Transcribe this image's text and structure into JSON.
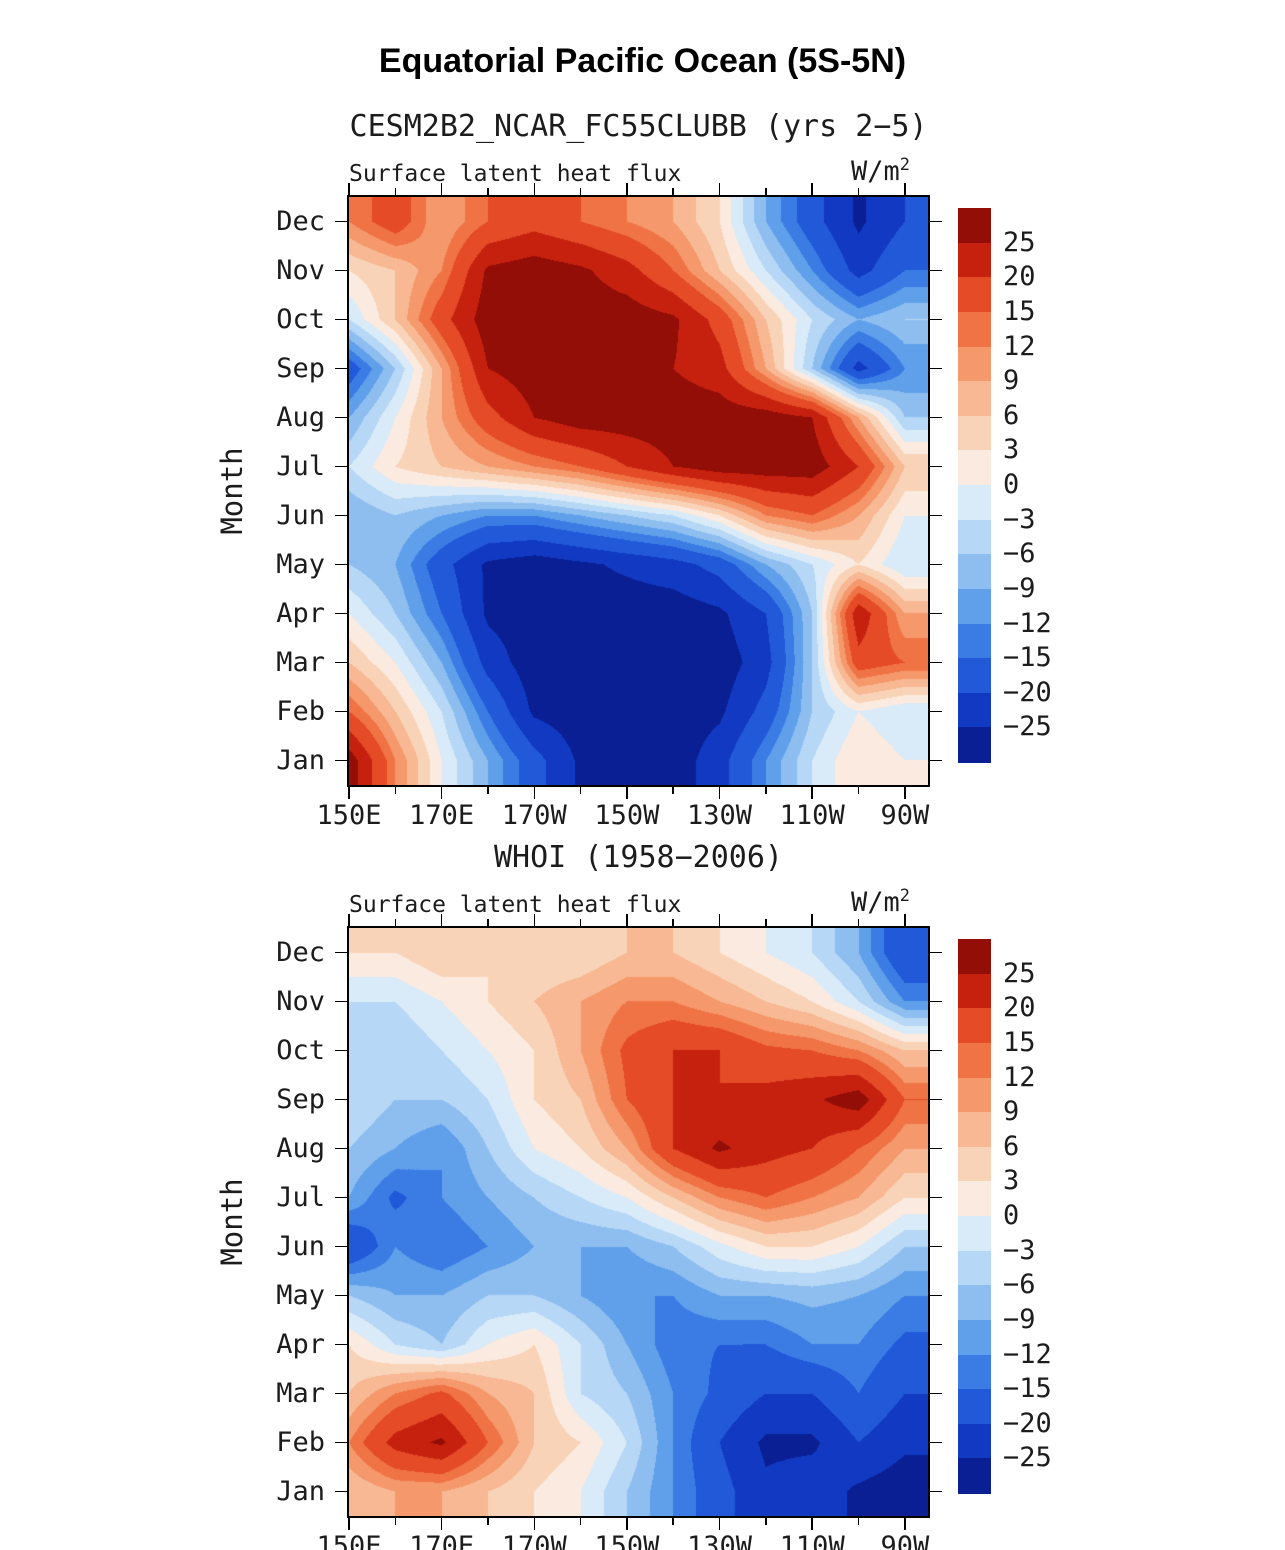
{
  "title": "Equatorial Pacific Ocean (5S-5N)",
  "chart_data": {
    "type": "heatmap",
    "x_tick_labels": [
      "150E",
      "170E",
      "170W",
      "150W",
      "130W",
      "110W",
      "90W"
    ],
    "x_categories": [
      "150E",
      "160E",
      "170E",
      "180",
      "170W",
      "160W",
      "150W",
      "140W",
      "130W",
      "120W",
      "110W",
      "100W",
      "90W"
    ],
    "y_categories": [
      "Jan",
      "Feb",
      "Mar",
      "Apr",
      "May",
      "Jun",
      "Jul",
      "Aug",
      "Sep",
      "Oct",
      "Nov",
      "Dec"
    ],
    "levels": [
      -25,
      -20,
      -15,
      -12,
      -9,
      -6,
      -3,
      0,
      3,
      6,
      9,
      12,
      15,
      20,
      25
    ],
    "colorbar_labels": [
      "25",
      "20",
      "15",
      "12",
      "9",
      "6",
      "3",
      "0",
      "−3",
      "−6",
      "−9",
      "−12",
      "−15",
      "−20",
      "−25"
    ],
    "colors": [
      "#0a1f94",
      "#1139c1",
      "#2159d8",
      "#3b7ce4",
      "#60a0ea",
      "#8ebef0",
      "#b6d7f5",
      "#d9eaf8",
      "#fbeadf",
      "#f9d3b8",
      "#f7b893",
      "#f5986b",
      "#ef7345",
      "#e44b26",
      "#c6210f",
      "#930e06"
    ],
    "panels": [
      {
        "subtitle": "CESM2B2_NCAR_FC55CLUBB (yrs 2−5)",
        "field_label": "Surface latent heat flux",
        "units_base": "W/m",
        "units_exp": "2",
        "ylabel": "Month",
        "values": [
          [
            28,
            12,
            0,
            -9,
            -18,
            -26,
            -28,
            -28,
            -22,
            -12,
            -3,
            3,
            0
          ],
          [
            15,
            6,
            -3,
            -15,
            -26,
            -28,
            -28,
            -28,
            -26,
            -18,
            -6,
            0,
            -3
          ],
          [
            6,
            0,
            -9,
            -22,
            -28,
            -28,
            -28,
            -28,
            -28,
            -22,
            -6,
            18,
            15
          ],
          [
            0,
            -6,
            -15,
            -26,
            -28,
            -28,
            -28,
            -28,
            -26,
            -20,
            -6,
            24,
            9
          ],
          [
            -6,
            -9,
            -18,
            -26,
            -28,
            -26,
            -24,
            -22,
            -18,
            -9,
            -3,
            3,
            -3
          ],
          [
            -9,
            -6,
            -9,
            -12,
            -12,
            -9,
            -6,
            -3,
            3,
            12,
            15,
            9,
            0
          ],
          [
            -3,
            3,
            6,
            9,
            12,
            15,
            20,
            25,
            28,
            28,
            28,
            20,
            6
          ],
          [
            -9,
            0,
            9,
            18,
            25,
            28,
            28,
            28,
            28,
            28,
            25,
            9,
            -6
          ],
          [
            -18,
            -6,
            9,
            25,
            28,
            28,
            28,
            25,
            22,
            9,
            -6,
            -22,
            -12
          ],
          [
            -3,
            6,
            18,
            28,
            28,
            28,
            28,
            26,
            18,
            6,
            -3,
            -9,
            -6
          ],
          [
            3,
            6,
            12,
            26,
            28,
            26,
            22,
            15,
            6,
            -3,
            -12,
            -22,
            -15
          ],
          [
            12,
            18,
            9,
            15,
            18,
            15,
            12,
            9,
            3,
            -9,
            -18,
            -26,
            -20
          ]
        ]
      },
      {
        "subtitle": "WHOI (1958−2006)",
        "field_label": "Surface latent heat flux",
        "units_base": "W/m",
        "units_exp": "2",
        "ylabel": "Month",
        "values": [
          [
            6,
            9,
            9,
            6,
            3,
            0,
            -6,
            -12,
            -18,
            -24,
            -22,
            -26,
            -28
          ],
          [
            12,
            22,
            26,
            15,
            6,
            3,
            -3,
            -12,
            -20,
            -26,
            -26,
            -20,
            -24
          ],
          [
            6,
            12,
            16,
            9,
            6,
            -3,
            -6,
            -12,
            -16,
            -20,
            -20,
            -15,
            -20
          ],
          [
            3,
            -3,
            -6,
            0,
            3,
            -3,
            -9,
            -14,
            -15,
            -15,
            -12,
            -12,
            -16
          ],
          [
            -6,
            -9,
            -9,
            -6,
            -6,
            -9,
            -12,
            -12,
            -9,
            -9,
            -8,
            -9,
            -12
          ],
          [
            -20,
            -12,
            -15,
            -12,
            -9,
            -9,
            -9,
            -6,
            -1,
            3,
            3,
            0,
            -6
          ],
          [
            -9,
            -16,
            -12,
            -9,
            -6,
            -3,
            0,
            6,
            12,
            15,
            12,
            9,
            3
          ],
          [
            -6,
            -9,
            -12,
            -6,
            0,
            3,
            9,
            20,
            26,
            22,
            20,
            15,
            9
          ],
          [
            -3,
            -6,
            -6,
            -3,
            3,
            6,
            15,
            20,
            20,
            22,
            24,
            28,
            15
          ],
          [
            -3,
            -6,
            -3,
            0,
            3,
            9,
            16,
            20,
            20,
            16,
            15,
            12,
            6
          ],
          [
            -3,
            -3,
            0,
            3,
            6,
            9,
            12,
            12,
            9,
            6,
            3,
            -3,
            -12
          ],
          [
            3,
            3,
            6,
            3,
            3,
            3,
            6,
            6,
            3,
            0,
            -3,
            -9,
            -20
          ]
        ]
      }
    ]
  }
}
